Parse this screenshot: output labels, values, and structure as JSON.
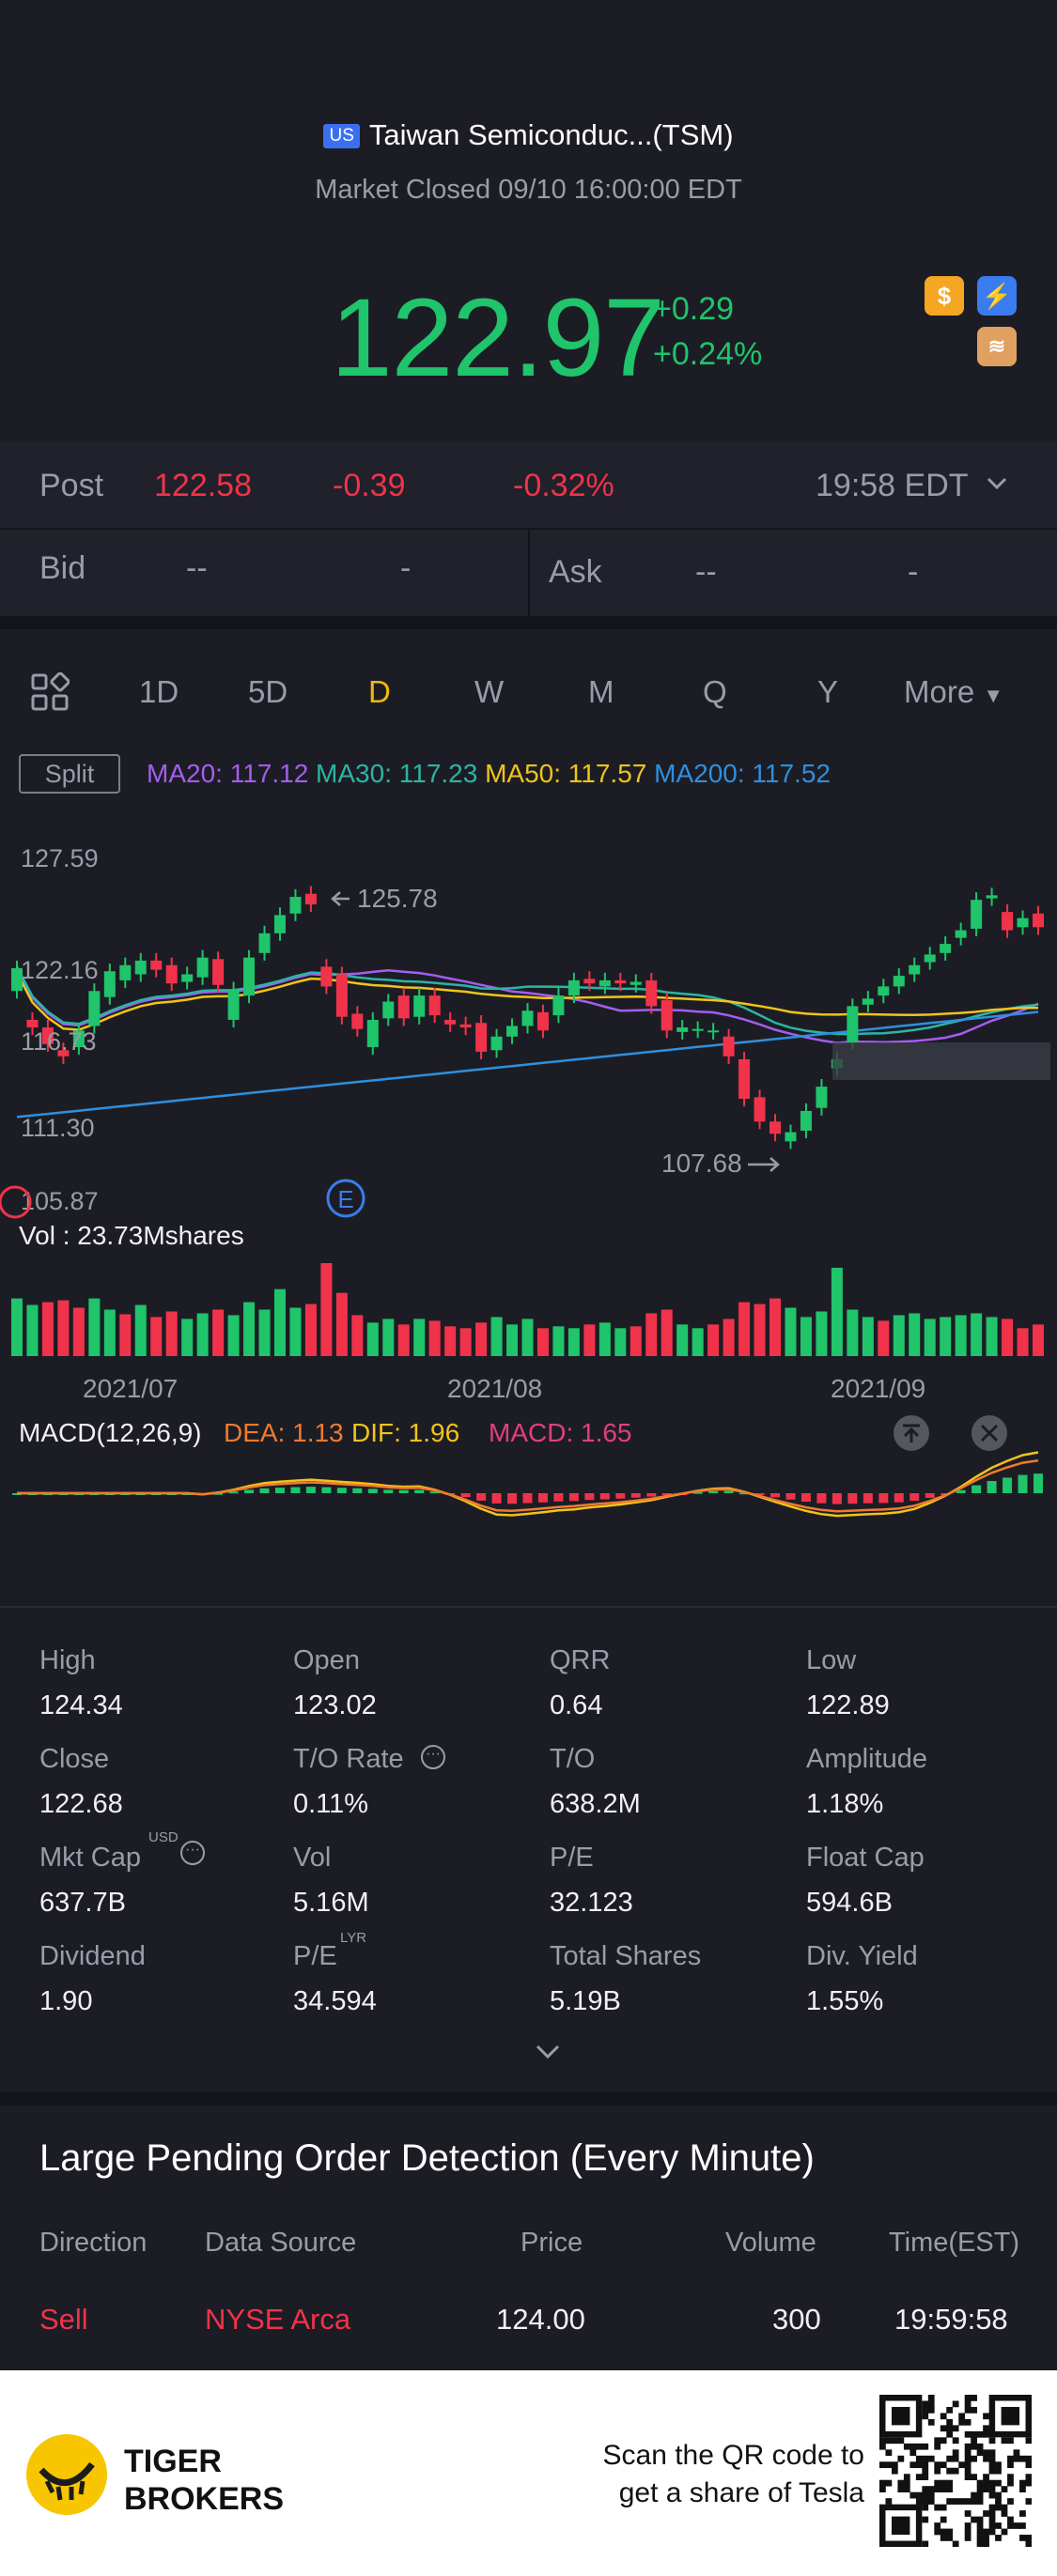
{
  "header": {
    "market_badge": "US",
    "title": "Taiwan Semiconduc...(TSM)",
    "status": "Market Closed 09/10 16:00:00 EDT"
  },
  "quote": {
    "price": "122.97",
    "change": "+0.29",
    "change_pct": "+0.24%"
  },
  "post_market": {
    "label": "Post",
    "price": "122.58",
    "change": "-0.39",
    "change_pct": "-0.32%",
    "time": "19:58 EDT"
  },
  "bid_ask": {
    "bid_label": "Bid",
    "bid_price": "--",
    "bid_size": "-",
    "ask_label": "Ask",
    "ask_price": "--",
    "ask_size": "-"
  },
  "periods": {
    "items": [
      "1D",
      "5D",
      "D",
      "W",
      "M",
      "Q",
      "Y"
    ],
    "active": "D",
    "more_label": "More"
  },
  "indicators": {
    "split_label": "Split",
    "ma20": "MA20: 117.12",
    "ma30": "MA30: 117.23",
    "ma50": "MA50: 117.57",
    "ma200": "MA200: 117.52",
    "ma20_color": "#a55df0",
    "ma30_color": "#2bb5a5",
    "ma50_color": "#f0c419",
    "ma200_color": "#2f8fe0"
  },
  "chart_data": {
    "type": "candlestick",
    "y_ticks": [
      "127.59",
      "122.16",
      "116.73",
      "111.30",
      "105.87"
    ],
    "high_marker": "125.78",
    "low_marker": "107.68",
    "event_marker": "E",
    "volume_label": "Vol  : 23.73Mshares",
    "x_ticks": [
      "2021/07",
      "2021/08",
      "2021/09"
    ],
    "candles": [
      {
        "o": 118.9,
        "c": 120.4
      },
      {
        "o": 117.0,
        "c": 116.5
      },
      {
        "o": 116.5,
        "c": 115.4
      },
      {
        "o": 115.0,
        "c": 114.6
      },
      {
        "o": 115.2,
        "c": 116.3
      },
      {
        "o": 116.6,
        "c": 118.9
      },
      {
        "o": 118.5,
        "c": 120.2
      },
      {
        "o": 119.6,
        "c": 120.6
      },
      {
        "o": 120.0,
        "c": 120.9
      },
      {
        "o": 120.9,
        "c": 120.3
      },
      {
        "o": 120.6,
        "c": 119.4
      },
      {
        "o": 119.5,
        "c": 120.0
      },
      {
        "o": 119.8,
        "c": 121.1
      },
      {
        "o": 121.0,
        "c": 119.3
      },
      {
        "o": 117.0,
        "c": 119.0
      },
      {
        "o": 118.6,
        "c": 121.1
      },
      {
        "o": 121.4,
        "c": 122.7
      },
      {
        "o": 122.7,
        "c": 123.9
      },
      {
        "o": 124.0,
        "c": 125.1
      },
      {
        "o": 125.3,
        "c": 124.6
      },
      {
        "o": 120.5,
        "c": 119.2
      },
      {
        "o": 120.0,
        "c": 117.2
      },
      {
        "o": 117.4,
        "c": 116.4
      },
      {
        "o": 115.2,
        "c": 117.0
      },
      {
        "o": 117.1,
        "c": 118.2
      },
      {
        "o": 118.6,
        "c": 117.1
      },
      {
        "o": 117.2,
        "c": 118.6
      },
      {
        "o": 118.6,
        "c": 117.3
      },
      {
        "o": 117.0,
        "c": 116.7
      },
      {
        "o": 116.7,
        "c": 116.5
      },
      {
        "o": 116.8,
        "c": 114.9
      },
      {
        "o": 115.0,
        "c": 115.9
      },
      {
        "o": 115.9,
        "c": 116.6
      },
      {
        "o": 116.6,
        "c": 117.6
      },
      {
        "o": 117.5,
        "c": 116.3
      },
      {
        "o": 117.3,
        "c": 118.6
      },
      {
        "o": 118.6,
        "c": 119.6
      },
      {
        "o": 119.7,
        "c": 119.4
      },
      {
        "o": 119.2,
        "c": 119.6
      },
      {
        "o": 119.6,
        "c": 119.4
      },
      {
        "o": 119.3,
        "c": 119.5
      },
      {
        "o": 119.6,
        "c": 117.9
      },
      {
        "o": 118.3,
        "c": 116.3
      },
      {
        "o": 116.2,
        "c": 116.5
      },
      {
        "o": 116.3,
        "c": 116.4
      },
      {
        "o": 116.2,
        "c": 116.3
      },
      {
        "o": 115.9,
        "c": 114.6
      },
      {
        "o": 114.4,
        "c": 111.8
      },
      {
        "o": 111.9,
        "c": 110.3
      },
      {
        "o": 110.3,
        "c": 109.5
      },
      {
        "o": 109.0,
        "c": 109.6
      },
      {
        "o": 109.7,
        "c": 111.0
      },
      {
        "o": 111.2,
        "c": 112.6
      },
      {
        "o": 113.8,
        "c": 114.4
      },
      {
        "o": 115.5,
        "c": 117.9
      },
      {
        "o": 118.0,
        "c": 118.4
      },
      {
        "o": 118.6,
        "c": 119.2
      },
      {
        "o": 119.2,
        "c": 119.9
      },
      {
        "o": 120.0,
        "c": 120.6
      },
      {
        "o": 120.8,
        "c": 121.3
      },
      {
        "o": 121.4,
        "c": 122.0
      },
      {
        "o": 122.4,
        "c": 122.9
      },
      {
        "o": 123.0,
        "c": 124.9
      },
      {
        "o": 125.0,
        "c": 125.2
      },
      {
        "o": 124.1,
        "c": 122.9
      },
      {
        "o": 123.1,
        "c": 123.7
      },
      {
        "o": 124.0,
        "c": 123.1
      }
    ],
    "volumes": [
      {
        "v": 0.62,
        "up": true
      },
      {
        "v": 0.55,
        "up": true
      },
      {
        "v": 0.58,
        "up": false
      },
      {
        "v": 0.6,
        "up": false
      },
      {
        "v": 0.52,
        "up": false
      },
      {
        "v": 0.62,
        "up": true
      },
      {
        "v": 0.5,
        "up": true
      },
      {
        "v": 0.45,
        "up": false
      },
      {
        "v": 0.55,
        "up": true
      },
      {
        "v": 0.42,
        "up": false
      },
      {
        "v": 0.48,
        "up": false
      },
      {
        "v": 0.4,
        "up": true
      },
      {
        "v": 0.46,
        "up": true
      },
      {
        "v": 0.5,
        "up": false
      },
      {
        "v": 0.44,
        "up": true
      },
      {
        "v": 0.58,
        "up": true
      },
      {
        "v": 0.5,
        "up": true
      },
      {
        "v": 0.72,
        "up": true
      },
      {
        "v": 0.52,
        "up": true
      },
      {
        "v": 0.56,
        "up": false
      },
      {
        "v": 1.0,
        "up": false
      },
      {
        "v": 0.68,
        "up": false
      },
      {
        "v": 0.44,
        "up": false
      },
      {
        "v": 0.36,
        "up": true
      },
      {
        "v": 0.4,
        "up": true
      },
      {
        "v": 0.34,
        "up": false
      },
      {
        "v": 0.4,
        "up": true
      },
      {
        "v": 0.38,
        "up": false
      },
      {
        "v": 0.32,
        "up": false
      },
      {
        "v": 0.3,
        "up": false
      },
      {
        "v": 0.36,
        "up": false
      },
      {
        "v": 0.42,
        "up": true
      },
      {
        "v": 0.34,
        "up": true
      },
      {
        "v": 0.4,
        "up": true
      },
      {
        "v": 0.3,
        "up": false
      },
      {
        "v": 0.32,
        "up": true
      },
      {
        "v": 0.3,
        "up": true
      },
      {
        "v": 0.34,
        "up": false
      },
      {
        "v": 0.36,
        "up": true
      },
      {
        "v": 0.3,
        "up": true
      },
      {
        "v": 0.32,
        "up": false
      },
      {
        "v": 0.46,
        "up": false
      },
      {
        "v": 0.5,
        "up": false
      },
      {
        "v": 0.34,
        "up": true
      },
      {
        "v": 0.3,
        "up": true
      },
      {
        "v": 0.34,
        "up": false
      },
      {
        "v": 0.4,
        "up": false
      },
      {
        "v": 0.58,
        "up": false
      },
      {
        "v": 0.56,
        "up": false
      },
      {
        "v": 0.62,
        "up": false
      },
      {
        "v": 0.52,
        "up": true
      },
      {
        "v": 0.42,
        "up": true
      },
      {
        "v": 0.48,
        "up": true
      },
      {
        "v": 0.95,
        "up": true
      },
      {
        "v": 0.5,
        "up": true
      },
      {
        "v": 0.42,
        "up": true
      },
      {
        "v": 0.38,
        "up": false
      },
      {
        "v": 0.44,
        "up": true
      },
      {
        "v": 0.46,
        "up": true
      },
      {
        "v": 0.4,
        "up": true
      },
      {
        "v": 0.42,
        "up": true
      },
      {
        "v": 0.44,
        "up": true
      },
      {
        "v": 0.46,
        "up": true
      },
      {
        "v": 0.42,
        "up": true
      },
      {
        "v": 0.4,
        "up": false
      },
      {
        "v": 0.3,
        "up": false
      },
      {
        "v": 0.34,
        "up": false
      }
    ]
  },
  "macd": {
    "label": "MACD(12,26,9)",
    "dea": "DEA: 1.13",
    "dif": "DIF: 1.96",
    "macd": "MACD: 1.65"
  },
  "stats": [
    {
      "label": "High",
      "value": "124.34"
    },
    {
      "label": "Open",
      "value": "123.02"
    },
    {
      "label": "QRR",
      "value": "0.64"
    },
    {
      "label": "Low",
      "value": "122.89"
    },
    {
      "label": "Close",
      "value": "122.68"
    },
    {
      "label": "T/O Rate",
      "value": "0.11%"
    },
    {
      "label": "T/O",
      "value": "638.2M"
    },
    {
      "label": "Amplitude",
      "value": "1.18%"
    },
    {
      "label": "Mkt Cap",
      "value": "637.7B"
    },
    {
      "label": "Vol",
      "value": "5.16M"
    },
    {
      "label": "P/E",
      "value": "32.123"
    },
    {
      "label": "Float Cap",
      "value": "594.6B"
    },
    {
      "label": "Dividend",
      "value": "1.90"
    },
    {
      "label": "P/E",
      "value": "34.594"
    },
    {
      "label": "Total Shares",
      "value": "5.19B"
    },
    {
      "label": "Div. Yield",
      "value": "1.55%"
    }
  ],
  "stat_superscripts": {
    "mkt_cap": "USD",
    "pe_lyr": "LYR"
  },
  "orders": {
    "title": "Large Pending Order Detection (Every Minute)",
    "headers": {
      "direction": "Direction",
      "source": "Data Source",
      "price": "Price",
      "volume": "Volume",
      "time": "Time(EST)"
    },
    "row": {
      "direction": "Sell",
      "source": "NYSE Arca",
      "price": "124.00",
      "volume": "300",
      "time": "19:59:58"
    }
  },
  "footer": {
    "brand_line1": "TIGER",
    "brand_line2": "BROKERS",
    "cta_line1": "Scan the QR code to",
    "cta_line2": "get a share of Tesla"
  }
}
